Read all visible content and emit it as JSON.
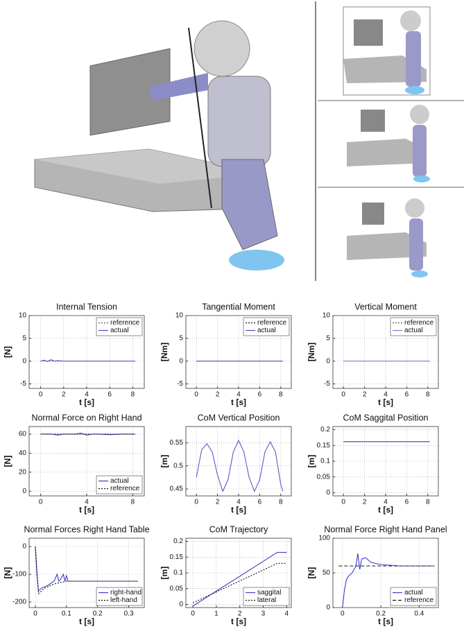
{
  "chart_data": [
    {
      "type": "line",
      "title": "Internal Tension",
      "xlabel": "t [s]",
      "ylabel": "[N]",
      "xlim": [
        -1,
        9
      ],
      "xticks": [
        0,
        2,
        4,
        6,
        8
      ],
      "ylim": [
        -6,
        10
      ],
      "yticks": [
        -5,
        0,
        5,
        10
      ],
      "grid": true,
      "legend": "upper right",
      "series": [
        {
          "name": "reference",
          "color": "#555555",
          "linestyle": "dotted",
          "x": [
            0,
            8.2
          ],
          "values": [
            0,
            0
          ]
        },
        {
          "name": "actual",
          "color": "#4b4bc8",
          "linestyle": "solid",
          "x": [
            0,
            0.3,
            0.6,
            0.9,
            1.2,
            1.5,
            2,
            4,
            6,
            8.2
          ],
          "values": [
            0,
            0.2,
            -0.1,
            0.3,
            0,
            0.1,
            0,
            0,
            0,
            0
          ]
        }
      ]
    },
    {
      "type": "line",
      "title": "Tangential Moment",
      "xlabel": "t [s]",
      "ylabel": "[Nm]",
      "xlim": [
        -1,
        9
      ],
      "xticks": [
        0,
        2,
        4,
        6,
        8
      ],
      "ylim": [
        -6,
        10
      ],
      "yticks": [
        -5,
        0,
        5,
        10
      ],
      "grid": true,
      "legend": "upper right",
      "series": [
        {
          "name": "reference",
          "color": "#111111",
          "linestyle": "dotted",
          "x": [
            0,
            8.2
          ],
          "values": [
            0,
            0
          ]
        },
        {
          "name": "actual",
          "color": "#4b4bc8",
          "linestyle": "solid",
          "x": [
            0,
            8.2
          ],
          "values": [
            0,
            0
          ]
        }
      ]
    },
    {
      "type": "line",
      "title": "Vertical Moment",
      "xlabel": "t [s]",
      "ylabel": "[Nm]",
      "xlim": [
        -1,
        9
      ],
      "xticks": [
        0,
        2,
        4,
        6,
        8
      ],
      "ylim": [
        -6,
        10
      ],
      "yticks": [
        -5,
        0,
        5,
        10
      ],
      "grid": true,
      "legend": "upper right",
      "series": [
        {
          "name": "reference",
          "color": "#555555",
          "linestyle": "dotted",
          "x": [
            0,
            8.2
          ],
          "values": [
            0,
            0
          ]
        },
        {
          "name": "actual",
          "color": "#7878d8",
          "linestyle": "solid",
          "x": [
            0,
            8.2
          ],
          "values": [
            0,
            0
          ]
        }
      ]
    },
    {
      "type": "line",
      "title": "Normal Force on Right Hand",
      "xlabel": "t [s]",
      "ylabel": "[N]",
      "xlim": [
        -1,
        9
      ],
      "xticks": [
        0,
        4,
        8
      ],
      "ylim": [
        -5,
        68
      ],
      "yticks": [
        0,
        20,
        40,
        60
      ],
      "grid": true,
      "legend": "lower right",
      "series": [
        {
          "name": "actual",
          "color": "#3c3cb4",
          "linestyle": "solid",
          "x": [
            0,
            1,
            1.5,
            2,
            3,
            3.5,
            4,
            4.5,
            5,
            6,
            7,
            8.2
          ],
          "values": [
            60,
            60,
            59,
            60,
            60,
            61,
            59,
            60,
            60,
            59.5,
            60,
            60
          ]
        },
        {
          "name": "reference",
          "color": "#111111",
          "linestyle": "dotted",
          "x": [
            0,
            8.2
          ],
          "values": [
            60,
            60
          ]
        }
      ]
    },
    {
      "type": "line",
      "title": "CoM Vertical Position",
      "xlabel": "t [s]",
      "ylabel": "[m]",
      "xlim": [
        -1,
        9
      ],
      "xticks": [
        0,
        2,
        4,
        6,
        8
      ],
      "ylim": [
        0.435,
        0.585
      ],
      "yticks": [
        0.45,
        0.5,
        0.55
      ],
      "grid": true,
      "series": [
        {
          "color": "#5a5ac8",
          "linestyle": "solid",
          "x": [
            0,
            0.5,
            1,
            1.5,
            2,
            2.5,
            3,
            3.5,
            4,
            4.5,
            5,
            5.5,
            6,
            6.5,
            7,
            7.5,
            8,
            8.2
          ],
          "values": [
            0.475,
            0.535,
            0.548,
            0.53,
            0.48,
            0.445,
            0.47,
            0.53,
            0.555,
            0.53,
            0.475,
            0.445,
            0.47,
            0.53,
            0.552,
            0.53,
            0.46,
            0.445
          ]
        }
      ]
    },
    {
      "type": "line",
      "title": "CoM Saggital Position",
      "xlabel": "t [s]",
      "ylabel": "[m]",
      "xlim": [
        -1,
        9
      ],
      "xticks": [
        0,
        2,
        4,
        6,
        8
      ],
      "ylim": [
        -0.01,
        0.21
      ],
      "yticks": [
        0,
        0.05,
        0.1,
        0.15,
        0.2
      ],
      "grid": true,
      "series": [
        {
          "color": "#3c3cb4",
          "linestyle": "solid",
          "x": [
            0,
            8.2
          ],
          "values": [
            0.162,
            0.162
          ]
        }
      ]
    },
    {
      "type": "line",
      "title": "Normal Forces Right Hand Table",
      "xlabel": "t [s]",
      "ylabel": "[N]",
      "xlim": [
        -0.02,
        0.35
      ],
      "xticks": [
        0,
        0.1,
        0.2,
        0.3
      ],
      "ylim": [
        -220,
        30
      ],
      "yticks": [
        0,
        -100,
        -200
      ],
      "grid": true,
      "legend": "lower right",
      "series": [
        {
          "name": "right-hand",
          "color": "#3c3cc8",
          "linestyle": "solid",
          "x": [
            0,
            0.005,
            0.01,
            0.02,
            0.04,
            0.06,
            0.07,
            0.075,
            0.08,
            0.09,
            0.095,
            0.1,
            0.105,
            0.11,
            0.33
          ],
          "values": [
            0,
            -100,
            -160,
            -150,
            -140,
            -125,
            -100,
            -125,
            -120,
            -100,
            -125,
            -105,
            -125,
            -125,
            -125
          ]
        },
        {
          "name": "left-hand",
          "color": "#111111",
          "linestyle": "dotted",
          "x": [
            0,
            0.01,
            0.03,
            0.06,
            0.1,
            0.33
          ],
          "values": [
            0,
            -170,
            -150,
            -135,
            -125,
            -125
          ]
        }
      ]
    },
    {
      "type": "line",
      "title": "CoM Trajectory",
      "xlabel": "t [s]",
      "ylabel": "[m]",
      "xlim": [
        -0.3,
        4.2
      ],
      "xticks": [
        0,
        1,
        2,
        3,
        4
      ],
      "ylim": [
        -0.01,
        0.21
      ],
      "yticks": [
        0,
        0.05,
        0.1,
        0.15,
        0.2
      ],
      "grid": true,
      "legend": "lower right",
      "series": [
        {
          "name": "saggital",
          "color": "#3c3cc8",
          "linestyle": "solid",
          "x": [
            0,
            3.6,
            4
          ],
          "values": [
            -0.005,
            0.165,
            0.165
          ]
        },
        {
          "name": "lateral",
          "color": "#111111",
          "linestyle": "dotted",
          "x": [
            0,
            3.6,
            4
          ],
          "values": [
            0.005,
            0.13,
            0.13
          ]
        }
      ]
    },
    {
      "type": "line",
      "title": "Normal Force Right Hand Panel",
      "xlabel": "t [s]",
      "ylabel": "[N]",
      "xlim": [
        -0.05,
        0.5
      ],
      "xticks": [
        0,
        0.2,
        0.4
      ],
      "ylim": [
        0,
        100
      ],
      "yticks": [
        0,
        50,
        100
      ],
      "grid": true,
      "legend": "lower right",
      "series": [
        {
          "name": "actual",
          "color": "#3c3cc8",
          "linestyle": "solid",
          "x": [
            0,
            0.01,
            0.02,
            0.03,
            0.05,
            0.07,
            0.08,
            0.09,
            0.1,
            0.12,
            0.15,
            0.2,
            0.3,
            0.48
          ],
          "values": [
            0,
            25,
            40,
            45,
            50,
            60,
            78,
            55,
            70,
            72,
            65,
            62,
            60,
            60
          ]
        },
        {
          "name": "reference",
          "color": "#111111",
          "linestyle": "dashed",
          "x": [
            -0.02,
            0.48
          ],
          "values": [
            60,
            60
          ]
        }
      ]
    }
  ]
}
